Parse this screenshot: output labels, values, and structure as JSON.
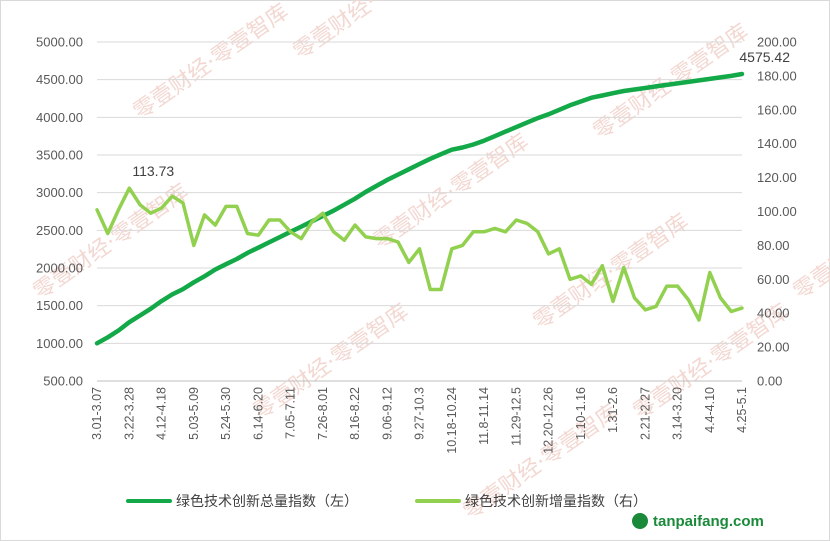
{
  "chart_data": {
    "type": "line",
    "left_axis": {
      "ticks": [
        "500.00",
        "1000.00",
        "1500.00",
        "2000.00",
        "2500.00",
        "3000.00",
        "3500.00",
        "4000.00",
        "4500.00",
        "5000.00"
      ],
      "range": [
        500,
        5000
      ]
    },
    "right_axis": {
      "ticks": [
        "0.00",
        "20.00",
        "40.00",
        "60.00",
        "80.00",
        "100.00",
        "120.00",
        "140.00",
        "160.00",
        "180.00",
        "200.00"
      ],
      "range": [
        0,
        200
      ]
    },
    "x_tick_labels": [
      "3.01-3.07",
      "3.22-3.28",
      "4.12-4.18",
      "5.03-5.09",
      "5.24-5.30",
      "6.14-6.20",
      "7.05-7.11",
      "7.26-8.01",
      "8.16-8.22",
      "9.06-9.12",
      "9.27-10.3",
      "10.18-10.24",
      "11.8-11.14",
      "11.29-12.5",
      "12.20-12.26",
      "1.10-1.16",
      "1.31-2.6",
      "2.21-2.27",
      "3.14-3.20",
      "4.4-4.10",
      "4.25-5.1"
    ],
    "grid": true,
    "legend_position": "bottom",
    "series": [
      {
        "name": "绿色技术创新总量指数（左）",
        "axis": "left",
        "color": "#13a948",
        "values": [
          1000,
          1080,
          1170,
          1280,
          1370,
          1460,
          1560,
          1650,
          1720,
          1810,
          1890,
          1980,
          2050,
          2120,
          2200,
          2270,
          2340,
          2410,
          2480,
          2550,
          2620,
          2690,
          2760,
          2840,
          2920,
          3010,
          3090,
          3170,
          3240,
          3310,
          3380,
          3450,
          3510,
          3570,
          3600,
          3640,
          3690,
          3750,
          3810,
          3870,
          3930,
          3990,
          4040,
          4100,
          4160,
          4210,
          4260,
          4290,
          4320,
          4350,
          4370,
          4390,
          4410,
          4430,
          4450,
          4470,
          4490,
          4510,
          4530,
          4550,
          4575.42
        ],
        "labels": [
          {
            "index": 60,
            "text": "4575.42"
          }
        ]
      },
      {
        "name": "绿色技术创新增量指数（右）",
        "axis": "right",
        "color": "#92d050",
        "values": [
          101,
          87,
          101,
          113.73,
          104,
          99,
          102,
          109,
          105,
          80,
          98,
          92,
          103,
          103,
          87,
          86,
          95,
          95,
          88,
          84,
          94,
          99,
          88,
          83,
          92,
          85,
          84,
          84,
          82,
          70,
          78,
          54,
          54,
          78,
          80,
          88,
          88,
          90,
          88,
          95,
          93,
          88,
          75,
          78,
          60,
          62,
          57,
          68,
          47,
          67,
          49,
          42,
          44,
          56,
          56,
          48,
          36,
          64,
          49,
          41,
          43
        ],
        "labels": [
          {
            "index": 3,
            "text": "113.73"
          }
        ]
      }
    ]
  },
  "watermark": {
    "text": "零壹财经·零壹智库",
    "color": "#f3d8d2"
  },
  "site_logo": {
    "text": "tanpaifang.com",
    "color": "#1a8a3a"
  }
}
